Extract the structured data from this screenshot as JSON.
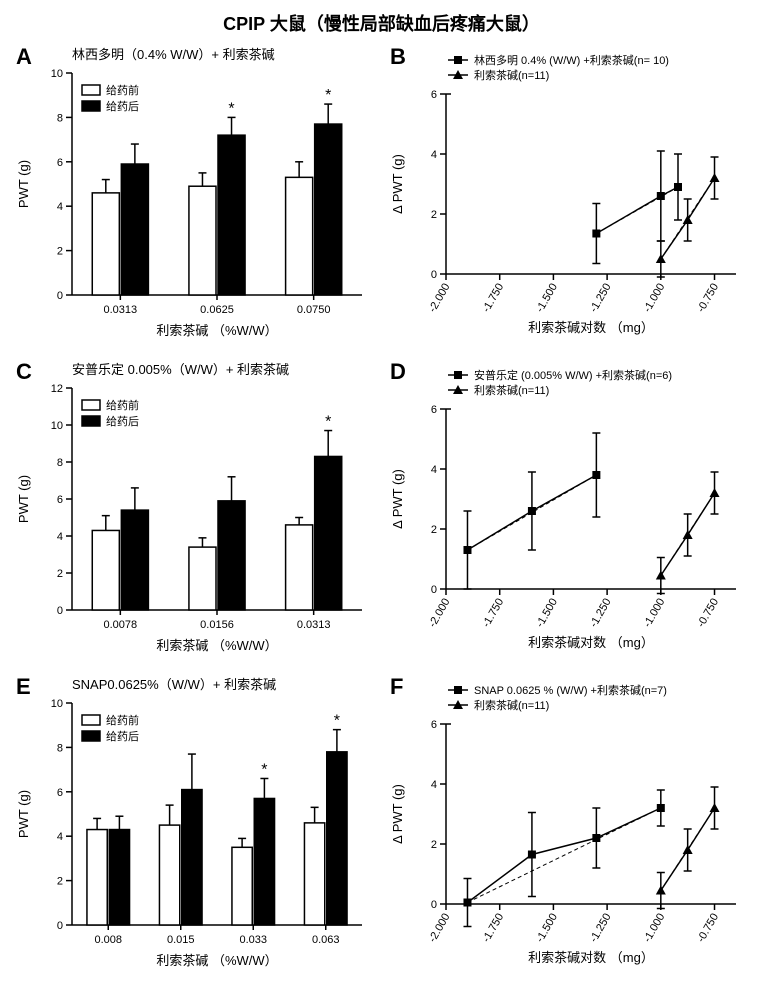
{
  "title": "CPIP 大鼠（慢性局部缺血后疼痛大鼠）",
  "panels": {
    "A": {
      "label": "A",
      "title": "林西多明（0.4% W/W）+ 利索茶碱"
    },
    "B": {
      "label": "B"
    },
    "C": {
      "label": "C",
      "title": "安普乐定 0.005%（W/W）+ 利索茶碱"
    },
    "D": {
      "label": "D"
    },
    "E": {
      "label": "E",
      "title": "SNAP0.0625%（W/W）+ 利索茶碱"
    },
    "F": {
      "label": "F"
    }
  },
  "bar_common": {
    "ylabel": "PWT (g)",
    "xlabel": "利索茶碱 （%W/W）",
    "legend": [
      "给药前",
      "给药后"
    ],
    "ytick_step": 2,
    "ylim": [
      0,
      10
    ]
  },
  "line_common": {
    "ylabel": "Δ PWT (g)",
    "xlabel": "利索茶碱对数 （mg）",
    "xticks": [
      "-2.000",
      "-1.750",
      "-1.500",
      "-1.250",
      "-1.000",
      "-0.750"
    ],
    "ylim": [
      0,
      6
    ],
    "ytick_step": 2
  },
  "A_chart": {
    "cats": [
      "0.0313",
      "0.0625",
      "0.0750"
    ],
    "pre": {
      "vals": [
        4.6,
        4.9,
        5.3
      ],
      "errs": [
        0.6,
        0.6,
        0.7
      ]
    },
    "post": {
      "vals": [
        5.9,
        7.2,
        7.7
      ],
      "errs": [
        0.9,
        0.8,
        0.9
      ]
    },
    "stars": [
      false,
      true,
      true
    ]
  },
  "B_chart": {
    "legend": [
      "林西多明 0.4% (W/W) +利索茶碱(n= 10)",
      "利索茶碱(n=11)"
    ],
    "s1": {
      "x": [
        -1.3,
        -1.0,
        -0.92
      ],
      "y": [
        1.35,
        2.6,
        2.9
      ],
      "err": [
        1.0,
        1.5,
        1.1
      ]
    },
    "s2": {
      "x": [
        -1.0,
        -0.875,
        -0.75
      ],
      "y": [
        0.5,
        1.8,
        3.2
      ],
      "err": [
        0.6,
        0.7,
        0.7
      ]
    }
  },
  "C_chart": {
    "cats": [
      "0.0078",
      "0.0156",
      "0.0313"
    ],
    "pre": {
      "vals": [
        4.3,
        3.4,
        4.6
      ],
      "errs": [
        0.8,
        0.5,
        0.4
      ]
    },
    "post": {
      "vals": [
        5.4,
        5.9,
        8.3
      ],
      "errs": [
        1.2,
        1.3,
        1.4
      ]
    },
    "stars": [
      false,
      false,
      true
    ],
    "ymax": 12
  },
  "D_chart": {
    "legend": [
      "安普乐定 (0.005% W/W) +利索茶碱(n=6)",
      "利索茶碱(n=11)"
    ],
    "s1": {
      "x": [
        -1.9,
        -1.6,
        -1.3
      ],
      "y": [
        1.3,
        2.6,
        3.8
      ],
      "err": [
        1.3,
        1.3,
        1.4
      ]
    },
    "s2": {
      "x": [
        -1.0,
        -0.875,
        -0.75
      ],
      "y": [
        0.45,
        1.8,
        3.2
      ],
      "err": [
        0.6,
        0.7,
        0.7
      ]
    }
  },
  "E_chart": {
    "cats": [
      "0.008",
      "0.015",
      "0.033",
      "0.063"
    ],
    "pre": {
      "vals": [
        4.3,
        4.5,
        3.5,
        4.6
      ],
      "errs": [
        0.5,
        0.9,
        0.4,
        0.7
      ]
    },
    "post": {
      "vals": [
        4.3,
        6.1,
        5.7,
        7.8
      ],
      "errs": [
        0.6,
        1.6,
        0.9,
        1.0
      ]
    },
    "stars": [
      false,
      false,
      true,
      true
    ]
  },
  "F_chart": {
    "legend": [
      "SNAP 0.0625 % (W/W) +利索茶碱(n=7)",
      "利索茶碱(n=11)"
    ],
    "s1": {
      "x": [
        -1.9,
        -1.6,
        -1.3,
        -1.0
      ],
      "y": [
        0.05,
        1.65,
        2.2,
        3.2
      ],
      "err": [
        0.8,
        1.4,
        1.0,
        0.6
      ]
    },
    "s2": {
      "x": [
        -1.0,
        -0.875,
        -0.75
      ],
      "y": [
        0.45,
        1.8,
        3.2
      ],
      "err": [
        0.6,
        0.7,
        0.7
      ]
    }
  }
}
